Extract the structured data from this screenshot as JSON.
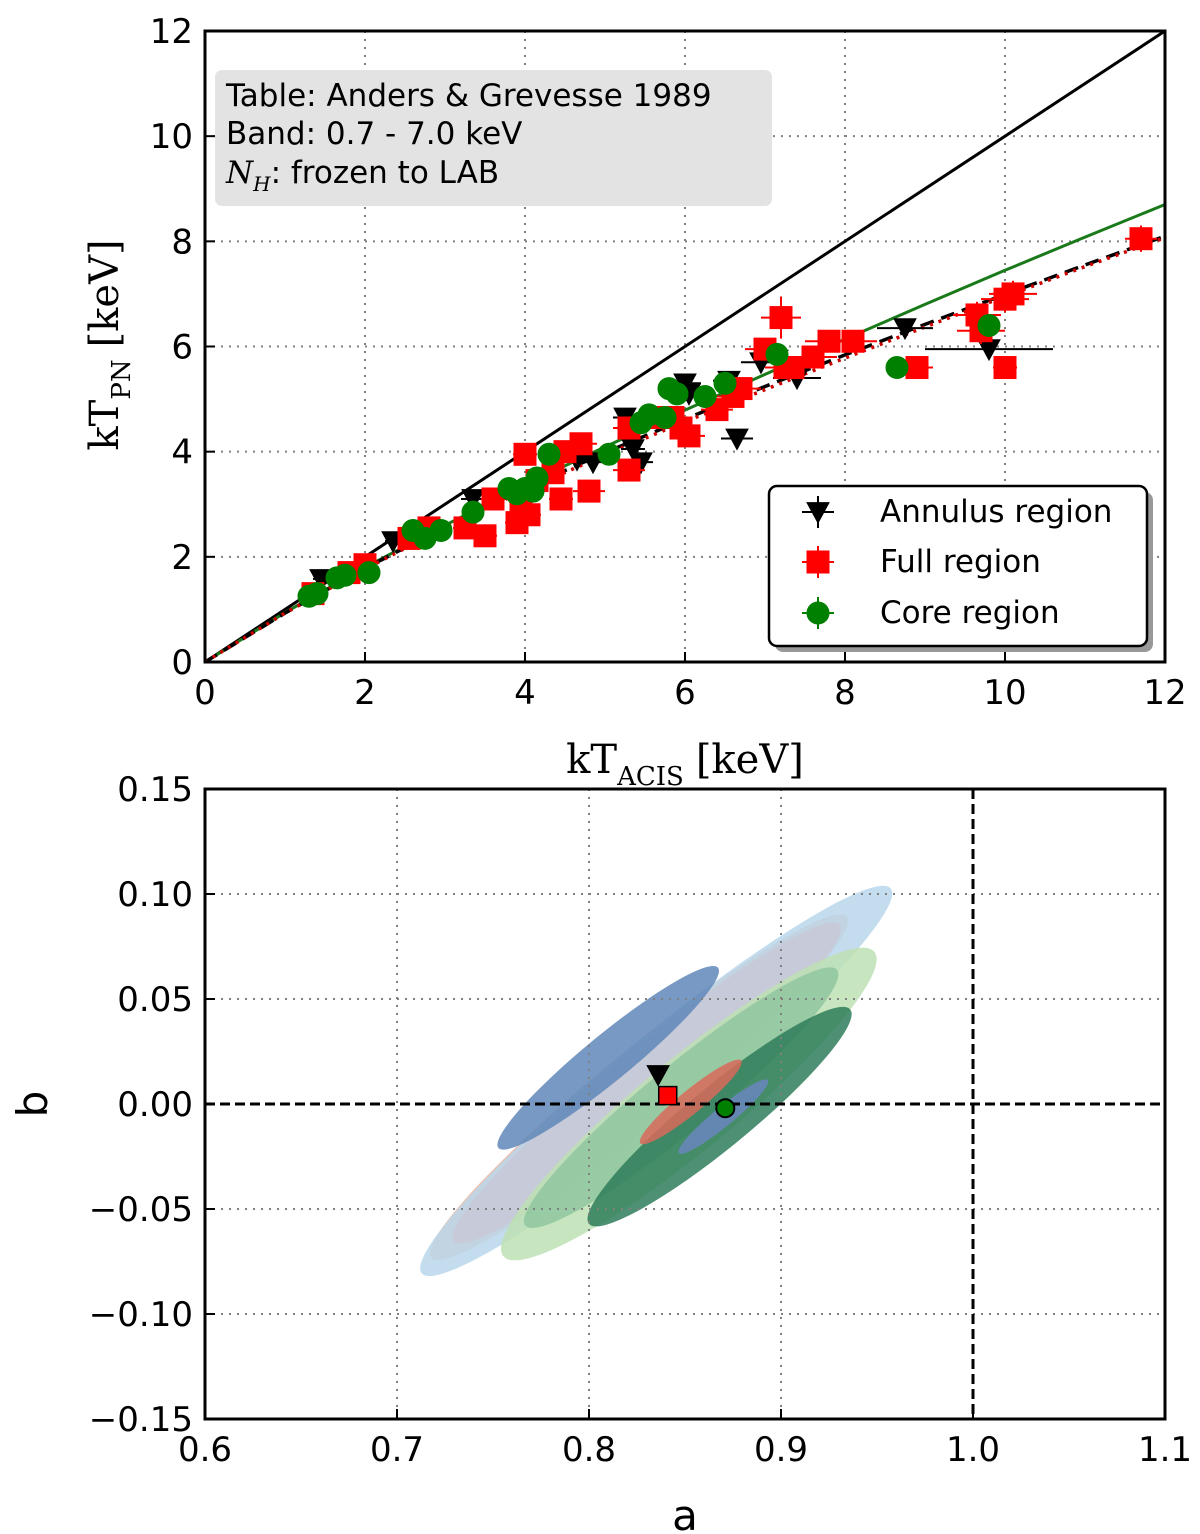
{
  "colors": {
    "annulus": "#000000",
    "full": "#ff0000",
    "core": "#008000",
    "one_to_one": "#000000",
    "fit_core": "#1a7a1a",
    "fit_annulus": "#000000",
    "fit_full": "#cc0000",
    "annotation_box": "#e3e3e3"
  },
  "chart_data": [
    {
      "type": "scatter",
      "title": "",
      "xlabel": {
        "base": "kT",
        "subscript": "ACIS",
        "unit": "[keV]"
      },
      "ylabel": {
        "base": "kT",
        "subscript": "PN",
        "unit": "[keV]"
      },
      "xlim": [
        0,
        12
      ],
      "ylim": [
        0,
        12
      ],
      "xticks": [
        "0",
        "2",
        "4",
        "6",
        "8",
        "10",
        "12"
      ],
      "yticks": [
        "0",
        "2",
        "4",
        "6",
        "8",
        "10",
        "12"
      ],
      "grid": true,
      "annotation": {
        "line1": "Table: Anders & Grevesse 1989",
        "line2": "Band: 0.7 - 7.0 keV",
        "line3_symbol": "N",
        "line3_sub": "H",
        "line3_text": ": frozen to LAB"
      },
      "legend": {
        "position": "bottom-right",
        "entries": [
          "Annulus region",
          "Full region",
          "Core region"
        ]
      },
      "lines": [
        {
          "name": "one-to-one",
          "style": "solid",
          "x": [
            0,
            12
          ],
          "y": [
            0,
            12
          ]
        },
        {
          "name": "fit-core",
          "style": "solid",
          "x": [
            0,
            1,
            2,
            3,
            4,
            5,
            6,
            7,
            8,
            9,
            10,
            11,
            12
          ],
          "y": [
            0,
            0.94,
            1.8,
            2.6,
            3.37,
            4.09,
            4.79,
            5.47,
            6.14,
            6.8,
            7.45,
            8.08,
            8.7
          ]
        },
        {
          "name": "fit-annulus",
          "style": "dashed",
          "x": [
            0,
            1,
            2,
            3,
            4,
            5,
            6,
            7,
            8,
            9,
            10,
            11,
            12
          ],
          "y": [
            0,
            0.93,
            1.78,
            2.57,
            3.3,
            3.98,
            4.62,
            5.24,
            5.84,
            6.42,
            6.99,
            7.55,
            8.1
          ]
        },
        {
          "name": "fit-full",
          "style": "dotted",
          "x": [
            0,
            1,
            2,
            3,
            4,
            5,
            6,
            7,
            8,
            9,
            10,
            11,
            12
          ],
          "y": [
            0,
            0.93,
            1.77,
            2.55,
            3.27,
            3.94,
            4.57,
            5.18,
            5.78,
            6.37,
            6.95,
            7.52,
            8.07
          ]
        }
      ],
      "series": [
        {
          "name": "Annulus region",
          "marker": "triangle-down",
          "points": [
            [
              1.45,
              1.58
            ],
            [
              2.35,
              2.3
            ],
            [
              3.35,
              3.1
            ],
            [
              4.65,
              3.85
            ],
            [
              4.85,
              3.8
            ],
            [
              5.25,
              4.65
            ],
            [
              5.35,
              4.05
            ],
            [
              5.45,
              3.8
            ],
            [
              6.0,
              5.3
            ],
            [
              6.05,
              5.1
            ],
            [
              6.55,
              5.35
            ],
            [
              6.65,
              4.25
            ],
            [
              6.95,
              5.7
            ],
            [
              7.15,
              5.75
            ],
            [
              7.4,
              5.4
            ],
            [
              8.75,
              6.35
            ],
            [
              9.8,
              5.95
            ]
          ],
          "xerr": [
            0.1,
            0.1,
            0.15,
            0.15,
            0.15,
            0.15,
            0.15,
            0.15,
            0.2,
            0.2,
            0.2,
            0.2,
            0.25,
            0.25,
            0.3,
            0.35,
            0.8
          ]
        },
        {
          "name": "Full region",
          "marker": "square",
          "points": [
            [
              1.35,
              1.3
            ],
            [
              1.8,
              1.7
            ],
            [
              2.0,
              1.85
            ],
            [
              2.55,
              2.35
            ],
            [
              2.8,
              2.55
            ],
            [
              3.25,
              2.55
            ],
            [
              3.5,
              2.4
            ],
            [
              3.6,
              3.1
            ],
            [
              3.95,
              3.05
            ],
            [
              3.9,
              2.65
            ],
            [
              4.05,
              2.8
            ],
            [
              4.0,
              3.95
            ],
            [
              4.15,
              3.45
            ],
            [
              4.35,
              3.6
            ],
            [
              4.45,
              3.1
            ],
            [
              4.5,
              4.0
            ],
            [
              4.7,
              4.15
            ],
            [
              4.8,
              3.25
            ],
            [
              5.3,
              3.65
            ],
            [
              5.3,
              4.45
            ],
            [
              5.6,
              4.65
            ],
            [
              5.85,
              4.65
            ],
            [
              5.95,
              4.45
            ],
            [
              6.05,
              4.3
            ],
            [
              6.4,
              4.8
            ],
            [
              6.6,
              5.05
            ],
            [
              6.7,
              5.2
            ],
            [
              7.0,
              5.95
            ],
            [
              7.2,
              6.55
            ],
            [
              7.25,
              5.6
            ],
            [
              7.35,
              5.6
            ],
            [
              7.6,
              5.8
            ],
            [
              7.8,
              6.1
            ],
            [
              8.1,
              6.1
            ],
            [
              8.9,
              5.6
            ],
            [
              9.65,
              6.6
            ],
            [
              9.7,
              6.3
            ],
            [
              10.0,
              6.9
            ],
            [
              10.1,
              7.0
            ],
            [
              10.0,
              5.6
            ],
            [
              11.7,
              8.05
            ]
          ],
          "xerr": [
            0.1,
            0.1,
            0.1,
            0.1,
            0.1,
            0.15,
            0.15,
            0.15,
            0.15,
            0.15,
            0.15,
            0.15,
            0.15,
            0.15,
            0.15,
            0.15,
            0.2,
            0.2,
            0.2,
            0.2,
            0.2,
            0.2,
            0.2,
            0.2,
            0.2,
            0.2,
            0.25,
            0.25,
            0.25,
            0.25,
            0.25,
            0.3,
            0.3,
            0.3,
            0.2,
            0.3,
            0.3,
            0.3,
            0.3,
            0.15,
            0.2
          ],
          "yerr": [
            0.1,
            0.1,
            0.1,
            0.1,
            0.1,
            0.1,
            0.1,
            0.15,
            0.15,
            0.15,
            0.15,
            0.15,
            0.15,
            0.15,
            0.15,
            0.15,
            0.15,
            0.15,
            0.15,
            0.15,
            0.15,
            0.15,
            0.15,
            0.15,
            0.2,
            0.2,
            0.2,
            0.2,
            0.4,
            0.2,
            0.2,
            0.2,
            0.2,
            0.2,
            0.2,
            0.25,
            0.25,
            0.25,
            0.25,
            0.2,
            0.25
          ]
        },
        {
          "name": "Core region",
          "marker": "circle",
          "points": [
            [
              1.3,
              1.25
            ],
            [
              1.4,
              1.3
            ],
            [
              1.65,
              1.6
            ],
            [
              1.75,
              1.65
            ],
            [
              2.05,
              1.7
            ],
            [
              2.6,
              2.5
            ],
            [
              2.75,
              2.35
            ],
            [
              2.95,
              2.5
            ],
            [
              3.35,
              2.85
            ],
            [
              3.8,
              3.3
            ],
            [
              3.9,
              3.2
            ],
            [
              4.0,
              3.3
            ],
            [
              4.1,
              3.25
            ],
            [
              4.15,
              3.5
            ],
            [
              4.3,
              3.95
            ],
            [
              5.05,
              3.95
            ],
            [
              5.45,
              4.55
            ],
            [
              5.55,
              4.7
            ],
            [
              5.75,
              4.65
            ],
            [
              5.8,
              5.2
            ],
            [
              5.9,
              5.1
            ],
            [
              6.25,
              5.05
            ],
            [
              6.5,
              5.3
            ],
            [
              7.15,
              5.85
            ],
            [
              8.65,
              5.6
            ],
            [
              9.8,
              6.4
            ]
          ]
        }
      ]
    },
    {
      "type": "scatter",
      "title": "",
      "xlabel": "a",
      "ylabel": "b",
      "xlim": [
        0.6,
        1.1
      ],
      "ylim": [
        -0.15,
        0.15
      ],
      "xticks": [
        "0.6",
        "0.7",
        "0.8",
        "0.9",
        "1.0",
        "1.1"
      ],
      "yticks": [
        "−0.15",
        "−0.10",
        "−0.05",
        "0.00",
        "0.05",
        "0.10",
        "0.15"
      ],
      "grid": true,
      "reference_lines": {
        "a": 1.0,
        "b": 0.0
      },
      "series": [
        {
          "name": "Annulus region",
          "marker": "triangle-down",
          "points": [
            [
              0.836,
              0.014
            ]
          ]
        },
        {
          "name": "Full region",
          "marker": "square",
          "points": [
            [
              0.841,
              0.004
            ]
          ]
        },
        {
          "name": "Core region",
          "marker": "circle",
          "points": [
            [
              0.871,
              -0.002
            ]
          ]
        }
      ],
      "confidence_regions": [
        {
          "name": "Full region 3-sigma",
          "color": "#f2b49b",
          "center": [
            0.826,
            0.008
          ],
          "semi_major": 0.14,
          "semi_minor": 0.019
        },
        {
          "name": "Annulus region 3-sigma",
          "color": "#b8d7ec",
          "center": [
            0.835,
            0.011
          ],
          "semi_major": 0.158,
          "semi_minor": 0.022
        },
        {
          "name": "Blended overlap",
          "color": "#c8c8d6",
          "center": [
            0.83,
            0.01
          ],
          "semi_major": 0.13,
          "semi_minor": 0.018
        },
        {
          "name": "Annulus region 2-sigma",
          "color": "#5f87b8",
          "center": [
            0.81,
            0.022
          ],
          "semi_major": 0.074,
          "semi_minor": 0.012
        },
        {
          "name": "Core region 3-sigma",
          "color": "#bde0b3",
          "center": [
            0.852,
            0.0
          ],
          "semi_major": 0.125,
          "semi_minor": 0.024
        },
        {
          "name": "Core region 2-sigma",
          "color": "#8fc79f",
          "center": [
            0.848,
            0.003
          ],
          "semi_major": 0.105,
          "semi_minor": 0.017
        },
        {
          "name": "Core region 1-sigma",
          "color": "#2e7d5a",
          "center": [
            0.868,
            -0.006
          ],
          "semi_major": 0.088,
          "semi_minor": 0.016
        },
        {
          "name": "Full region 1-sigma",
          "color": "#d86a5a",
          "center": [
            0.853,
            0.001
          ],
          "semi_major": 0.034,
          "semi_minor": 0.006
        },
        {
          "name": "Annulus region 1-sigma",
          "color": "#6a86c0",
          "center": [
            0.87,
            -0.006
          ],
          "semi_major": 0.03,
          "semi_minor": 0.005
        }
      ]
    }
  ]
}
